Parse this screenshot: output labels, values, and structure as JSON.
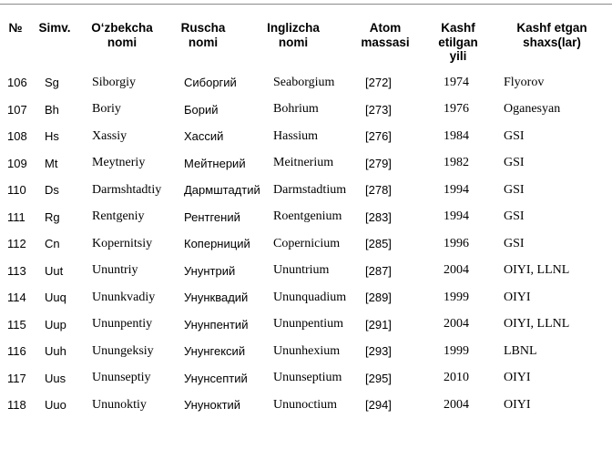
{
  "slide": {
    "background_color": "#ffffff",
    "divider_color": "#8a8a8a"
  },
  "table": {
    "columns": [
      {
        "id": "number",
        "label": "№"
      },
      {
        "id": "symbol",
        "label": "Simv."
      },
      {
        "id": "uzbek-name",
        "label": "O‘zbekcha\nnomi"
      },
      {
        "id": "russian-name",
        "label": "Ruscha\nnomi"
      },
      {
        "id": "english-name",
        "label": "Inglizcha\nnomi"
      },
      {
        "id": "atomic-mass",
        "label": "Atom\nmassasi"
      },
      {
        "id": "discovery-year",
        "label": "Kashf\netilgan\nyili"
      },
      {
        "id": "discoverer",
        "label": "Kashf etgan\nshaxs(lar)"
      }
    ],
    "rows": [
      [
        "106",
        "Sg",
        "Siborgiy",
        "Сиборгий",
        "Seaborgium",
        "[272]",
        "1974",
        "Flyorov"
      ],
      [
        "107",
        "Bh",
        "Boriy",
        "Борий",
        "Bohrium",
        "[273]",
        "1976",
        "Oganesyan"
      ],
      [
        "108",
        "Hs",
        "Xassiy",
        "Хассий",
        "Hassium",
        "[276]",
        "1984",
        "GSI"
      ],
      [
        "109",
        "Mt",
        "Meytneriy",
        "Мейтнерий",
        "Meitnerium",
        "[279]",
        "1982",
        "GSI"
      ],
      [
        "110",
        "Ds",
        "Darmshtadtiy",
        "Дармштадтий",
        "Darmstadtium",
        "[278]",
        "1994",
        "GSI"
      ],
      [
        "111",
        "Rg",
        "Rentgeniy",
        "Рентгений",
        "Roentgenium",
        "[283]",
        "1994",
        "GSI"
      ],
      [
        "112",
        "Cn",
        "Kopernitsiy",
        "Коперниций",
        "Copernicium",
        "[285]",
        "1996",
        "GSI"
      ],
      [
        "113",
        "Uut",
        "Ununtriy",
        "Унунтрий",
        "Ununtrium",
        "[287]",
        "2004",
        "OIYI, LLNL"
      ],
      [
        "114",
        "Uuq",
        "Ununkvadiy",
        "Унунквадий",
        "Ununquadium",
        "[289]",
        "1999",
        "OIYI"
      ],
      [
        "115",
        "Uup",
        "Ununpentiy",
        "Унунпентий",
        "Ununpentium",
        "[291]",
        "2004",
        "OIYI, LLNL"
      ],
      [
        "116",
        "Uuh",
        "Unungeksiy",
        "Унунгексий",
        "Ununhexium",
        "[293]",
        "1999",
        "LBNL"
      ],
      [
        "117",
        "Uus",
        "Ununseptiy",
        "Унунсептий",
        "Ununseptium",
        "[295]",
        "2010",
        "OIYI"
      ],
      [
        "118",
        "Uuo",
        "Ununoktiy",
        "Унуноктий",
        "Ununoctium",
        "[294]",
        "2004",
        "OIYI"
      ]
    ]
  }
}
